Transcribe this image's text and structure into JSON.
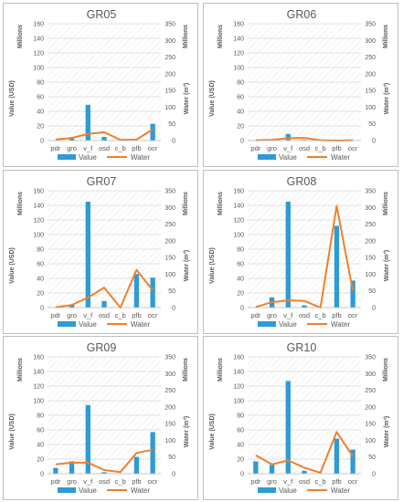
{
  "colors": {
    "value_bar": "#2e9bd6",
    "water_line": "#f07f2a",
    "grid": "#d9d9d9",
    "text": "#595959"
  },
  "common": {
    "categories": [
      "pdr",
      "gro",
      "v_f",
      "osd",
      "c_b",
      "pfb",
      "ocr"
    ],
    "left_ticks": [
      "0",
      "20",
      "40",
      "60",
      "80",
      "100",
      "120",
      "140",
      "160"
    ],
    "right_ticks": [
      "0",
      "50",
      "100",
      "150",
      "200",
      "250",
      "300",
      "350"
    ],
    "left_unit": "Millions",
    "right_unit": "Millions",
    "ylabel_left": "Value (USD)",
    "ylabel_right": "Water (m³)",
    "legend_value": "Value",
    "legend_water": "Water"
  },
  "chart_data": [
    {
      "type": "bar+line",
      "title": "GR05",
      "ylim_left": [
        0,
        160
      ],
      "ylim_right": [
        0,
        350
      ],
      "legend": "bottom",
      "categories": [
        "pdr",
        "gro",
        "v_f",
        "osd",
        "c_b",
        "pfb",
        "ocr"
      ],
      "series": [
        {
          "name": "Value",
          "axis": "left",
          "values": [
            0,
            3,
            49,
            5,
            0,
            0,
            23
          ]
        },
        {
          "name": "Water",
          "axis": "right",
          "values": [
            3,
            8,
            20,
            25,
            2,
            3,
            33
          ]
        }
      ]
    },
    {
      "type": "bar+line",
      "title": "GR06",
      "ylim_left": [
        0,
        160
      ],
      "ylim_right": [
        0,
        350
      ],
      "legend": "bottom",
      "categories": [
        "pdr",
        "gro",
        "v_f",
        "osd",
        "c_b",
        "pfb",
        "ocr"
      ],
      "series": [
        {
          "name": "Value",
          "axis": "left",
          "values": [
            0,
            0,
            9,
            1,
            0,
            0,
            0
          ]
        },
        {
          "name": "Water",
          "axis": "right",
          "values": [
            1,
            2,
            7,
            8,
            1,
            0,
            1
          ]
        }
      ]
    },
    {
      "type": "bar+line",
      "title": "GR07",
      "ylim_left": [
        0,
        160
      ],
      "ylim_right": [
        0,
        350
      ],
      "legend": "bottom",
      "categories": [
        "pdr",
        "gro",
        "v_f",
        "osd",
        "c_b",
        "pfb",
        "ocr"
      ],
      "series": [
        {
          "name": "Value",
          "axis": "left",
          "values": [
            0,
            4,
            145,
            9,
            0,
            46,
            41
          ]
        },
        {
          "name": "Water",
          "axis": "right",
          "values": [
            1,
            8,
            30,
            60,
            0,
            113,
            52
          ]
        }
      ]
    },
    {
      "type": "bar+line",
      "title": "GR08",
      "ylim_left": [
        0,
        160
      ],
      "ylim_right": [
        0,
        350
      ],
      "legend": "bottom",
      "categories": [
        "pdr",
        "gro",
        "v_f",
        "osd",
        "c_b",
        "pfb",
        "ocr"
      ],
      "series": [
        {
          "name": "Value",
          "axis": "left",
          "values": [
            0,
            14,
            145,
            3,
            0,
            112,
            37
          ]
        },
        {
          "name": "Water",
          "axis": "right",
          "values": [
            2,
            16,
            22,
            20,
            0,
            305,
            50
          ]
        }
      ]
    },
    {
      "type": "bar+line",
      "title": "GR09",
      "ylim_left": [
        0,
        160
      ],
      "ylim_right": [
        0,
        350
      ],
      "legend": "bottom",
      "categories": [
        "pdr",
        "gro",
        "v_f",
        "osd",
        "c_b",
        "pfb",
        "ocr"
      ],
      "series": [
        {
          "name": "Value",
          "axis": "left",
          "values": [
            8,
            17,
            94,
            2,
            0,
            23,
            57
          ]
        },
        {
          "name": "Water",
          "axis": "right",
          "values": [
            28,
            33,
            33,
            11,
            5,
            62,
            72
          ]
        }
      ]
    },
    {
      "type": "bar+line",
      "title": "GR10",
      "ylim_left": [
        0,
        160
      ],
      "ylim_right": [
        0,
        350
      ],
      "legend": "bottom",
      "categories": [
        "pdr",
        "gro",
        "v_f",
        "osd",
        "c_b",
        "pfb",
        "ocr"
      ],
      "series": [
        {
          "name": "Value",
          "axis": "left",
          "values": [
            17,
            12,
            127,
            4,
            0,
            48,
            33
          ]
        },
        {
          "name": "Water",
          "axis": "right",
          "values": [
            55,
            28,
            40,
            18,
            3,
            125,
            52
          ]
        }
      ]
    }
  ]
}
